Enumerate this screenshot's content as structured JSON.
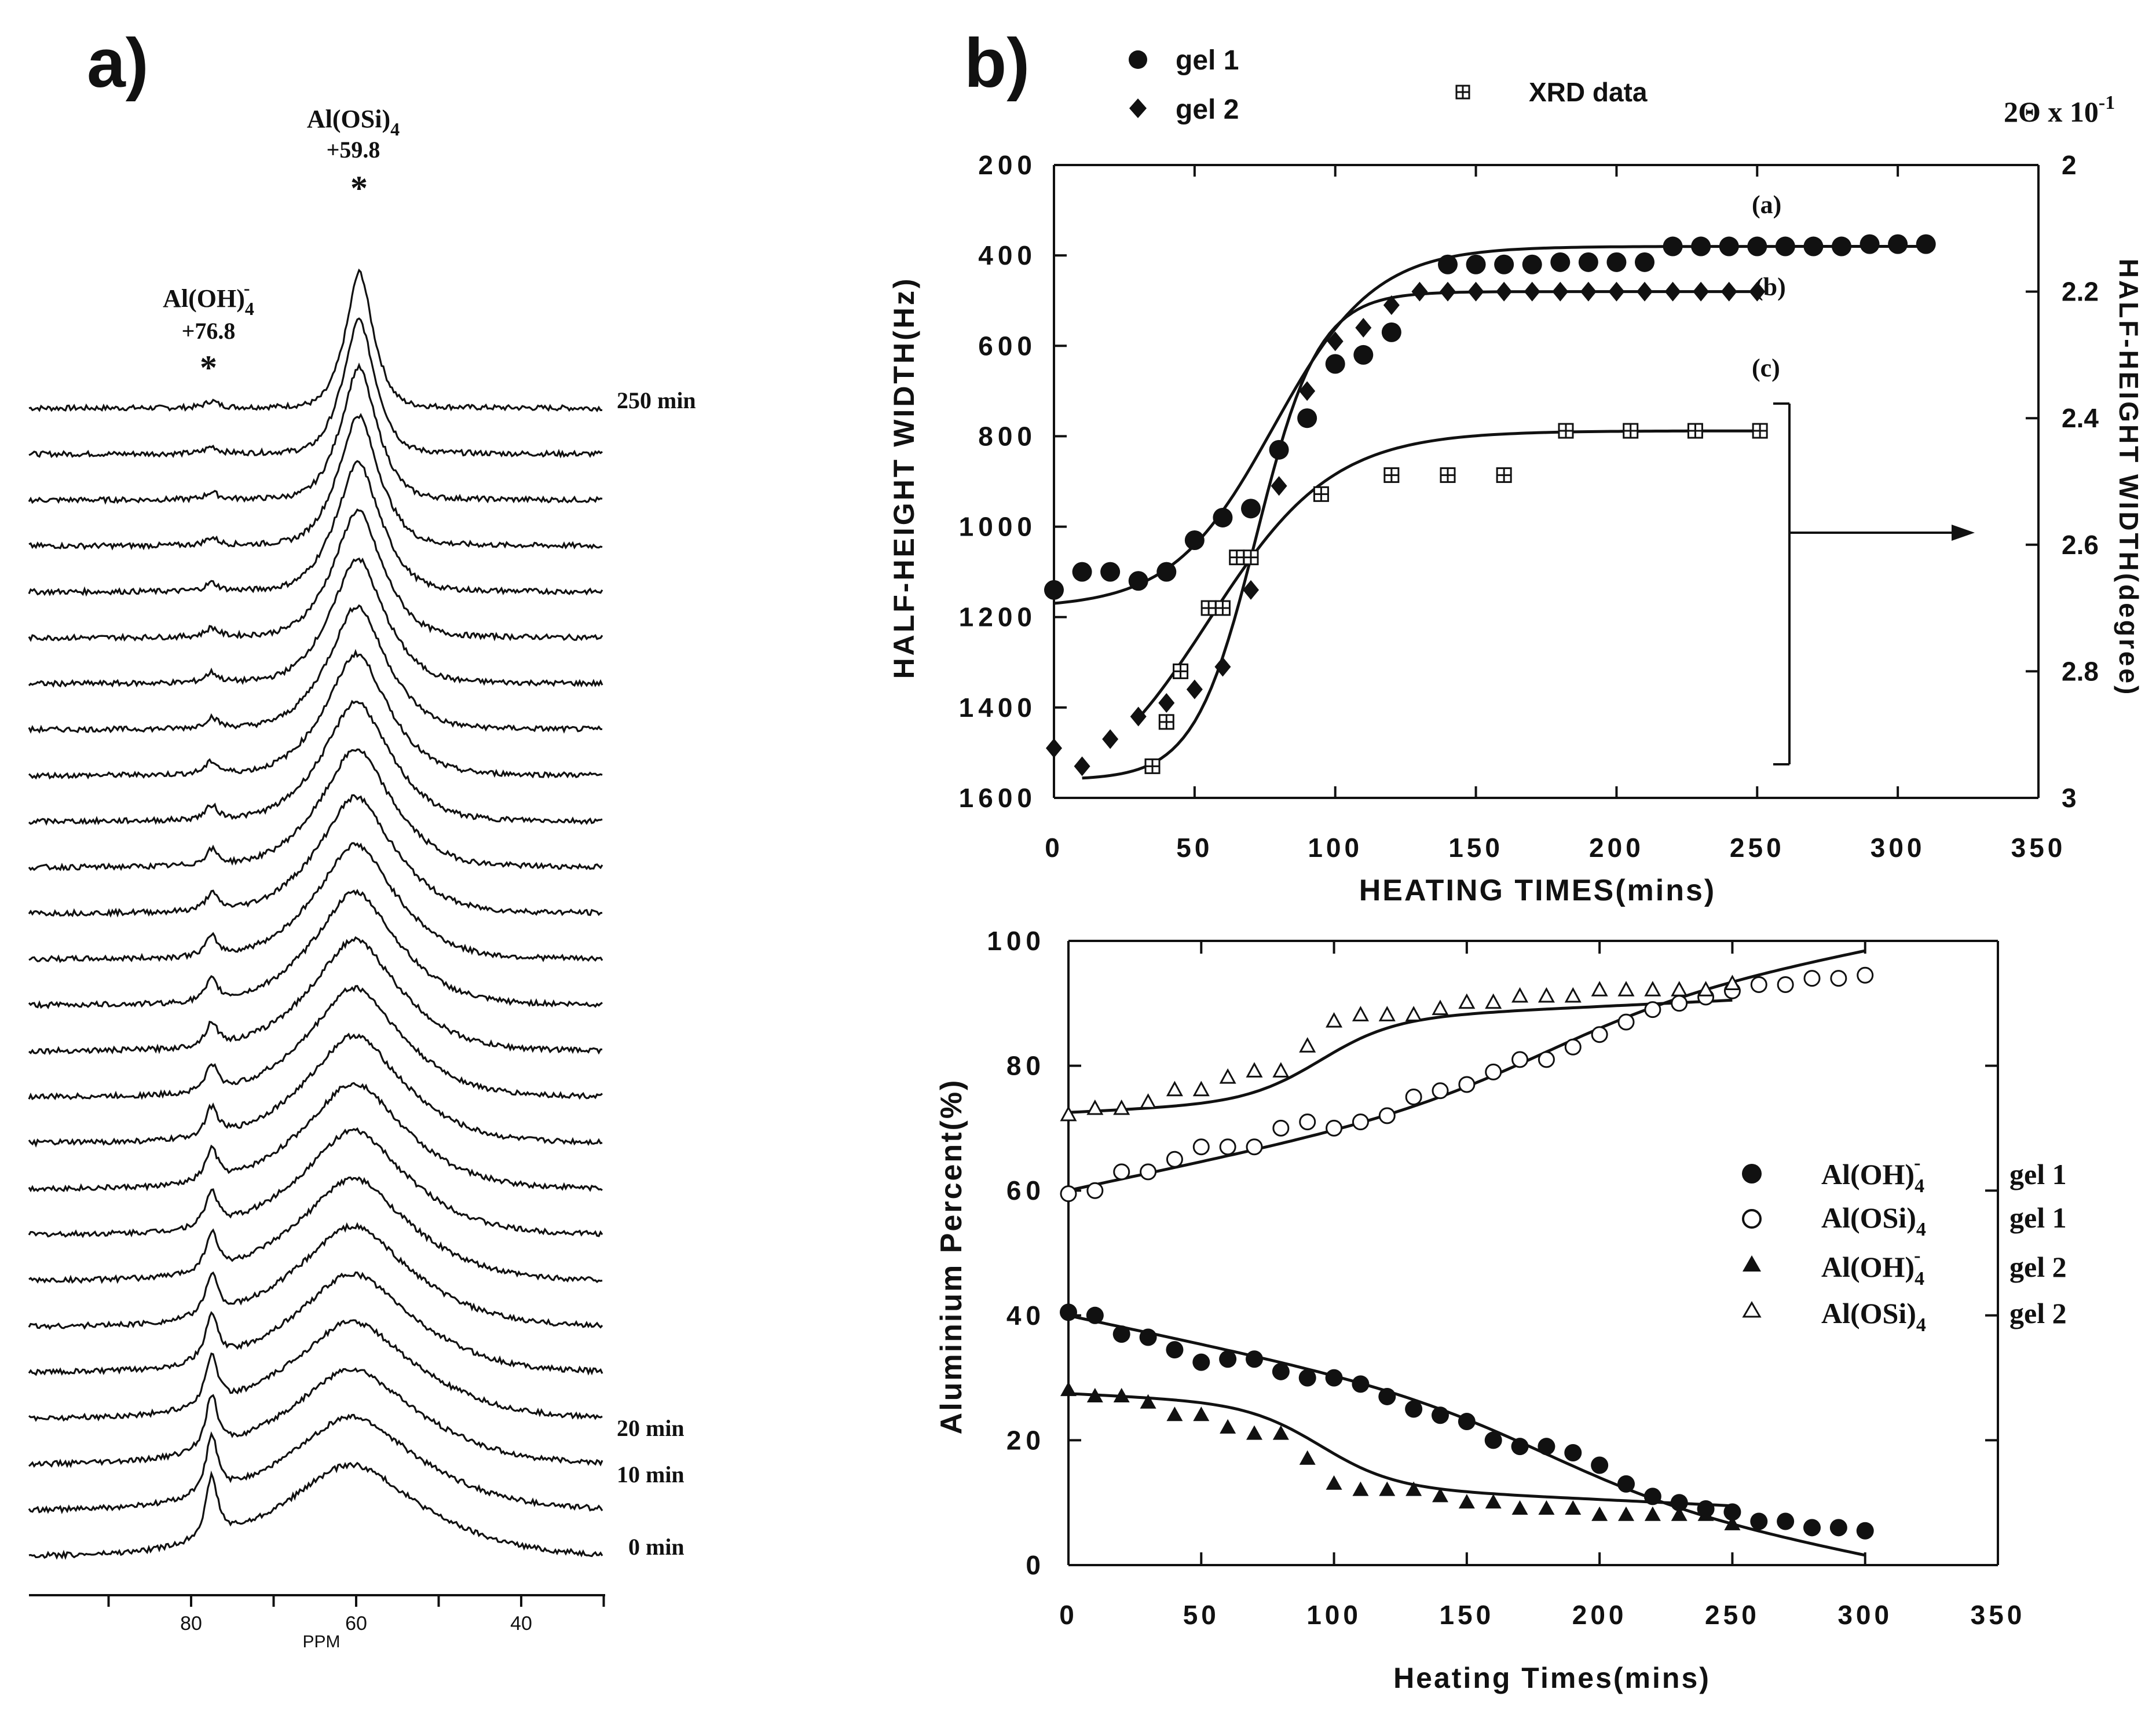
{
  "panel_a": {
    "panel_label": "a)",
    "peak1_name": "Al(OH)",
    "peak1_sub": "4",
    "peak1_sup": "-",
    "peak1_ppm": "+76.8",
    "peak2_name": "Al(OSi)",
    "peak2_sub": "4",
    "peak2_ppm": "+59.8",
    "peak_marker": "*",
    "time_labels": [
      "250 min",
      "20 min",
      "10 min",
      "0 min"
    ],
    "x_ticks": [
      "80",
      "60",
      "40"
    ],
    "x_label": "PPM",
    "chart_data": {
      "type": "line",
      "description_of_series": "stacked 27Al MAS NMR spectra versus heating time",
      "x_unit": "ppm",
      "xlim": [
        98,
        28
      ],
      "peak_positions_ppm": [
        76.8,
        59.8
      ],
      "spectra_count": 26,
      "labelled_times_min": [
        0,
        10,
        20,
        250
      ]
    }
  },
  "panel_b": {
    "panel_label": "b)",
    "top_legend": [
      {
        "marker": "circle",
        "label": "gel 1"
      },
      {
        "marker": "diamond",
        "label": "gel 2"
      },
      {
        "marker": "boxplus",
        "label": "XRD data"
      }
    ],
    "right_axis_title": "2Θ x 10",
    "right_axis_exp": "-1",
    "curve_labels": [
      "(a)",
      "(b)",
      "(c)"
    ],
    "top_chart": {
      "ylabel_left": "HALF-HEIGHT WIDTH(Hz)",
      "ylabel_right": "HALF-HEIGHT WIDTH(degree)",
      "xlabel": "HEATING TIMES(mins)",
      "x_ticks": [
        "0",
        "50",
        "100",
        "150",
        "200",
        "250",
        "300",
        "350"
      ],
      "y_ticks_left": [
        "200",
        "400",
        "600",
        "800",
        "1000",
        "1200",
        "1400",
        "1600"
      ],
      "y_ticks_right": [
        "2",
        "2.2",
        "2.4",
        "2.6",
        "2.8",
        "3"
      ]
    },
    "bottom_chart": {
      "ylabel": "Aluminium Percent(%)",
      "xlabel": "Heating Times(mins)",
      "x_ticks": [
        "0",
        "50",
        "100",
        "150",
        "200",
        "250",
        "300",
        "350"
      ],
      "y_ticks": [
        "0",
        "20",
        "40",
        "60",
        "80",
        "100"
      ],
      "legend": [
        {
          "marker": "filled-circle",
          "species": "Al(OH)",
          "sub": "4",
          "sup": "-",
          "gel": "gel 1"
        },
        {
          "marker": "open-circle",
          "species": "Al(OSi)",
          "sub": "4",
          "sup": "",
          "gel": "gel 1"
        },
        {
          "marker": "filled-triangle",
          "species": "Al(OH)",
          "sub": "4",
          "sup": "-",
          "gel": "gel 2"
        },
        {
          "marker": "open-triangle",
          "species": "Al(OSi)",
          "sub": "4",
          "sup": "",
          "gel": "gel 2"
        }
      ]
    }
  },
  "chart_data": [
    {
      "type": "scatter",
      "xlabel": "HEATING TIMES(mins)",
      "ylabel": "HALF-HEIGHT WIDTH(Hz)",
      "ylabel_right": "HALF-HEIGHT WIDTH(degree)",
      "xlim": [
        0,
        350
      ],
      "ylim_left": [
        200,
        1600
      ],
      "ylim_right": [
        2,
        3
      ],
      "y_axis_inverted": true,
      "series": [
        {
          "name": "gel 1",
          "axis": "left",
          "x": [
            0,
            10,
            20,
            30,
            40,
            50,
            60,
            70,
            80,
            90,
            100,
            110,
            120,
            140,
            150,
            160,
            170,
            180,
            190,
            200,
            210,
            220,
            230,
            240,
            250,
            260,
            270,
            280,
            290,
            300,
            310
          ],
          "y": [
            1140,
            1100,
            1100,
            1120,
            1100,
            1030,
            980,
            960,
            830,
            760,
            640,
            620,
            570,
            420,
            420,
            420,
            420,
            415,
            415,
            415,
            415,
            380,
            380,
            380,
            380,
            380,
            380,
            380,
            375,
            375,
            375
          ]
        },
        {
          "name": "gel 2",
          "axis": "left",
          "x": [
            0,
            10,
            20,
            30,
            40,
            50,
            60,
            70,
            80,
            90,
            100,
            110,
            120,
            130,
            140,
            150,
            160,
            170,
            180,
            190,
            200,
            210,
            220,
            230,
            240,
            250
          ],
          "y": [
            1490,
            1530,
            1470,
            1420,
            1390,
            1360,
            1310,
            1140,
            910,
            700,
            590,
            560,
            510,
            480,
            480,
            480,
            480,
            480,
            480,
            480,
            480,
            480,
            480,
            480,
            480,
            480
          ]
        },
        {
          "name": "XRD data",
          "axis": "right",
          "x": [
            35,
            40,
            45,
            55,
            60,
            65,
            70,
            95,
            120,
            140,
            160,
            182,
            205,
            228,
            251
          ],
          "y": [
            2.95,
            2.88,
            2.8,
            2.7,
            2.7,
            2.62,
            2.62,
            2.52,
            2.49,
            2.49,
            2.49,
            2.42,
            2.42,
            2.42,
            2.42
          ]
        }
      ],
      "annotations": [
        "(a)",
        "(b)",
        "(c)"
      ]
    },
    {
      "type": "scatter",
      "xlabel": "Heating Times(mins)",
      "ylabel": "Aluminium Percent(%)",
      "xlim": [
        0,
        350
      ],
      "ylim": [
        0,
        100
      ],
      "series": [
        {
          "name": "Al(OH)4- gel 1",
          "x": [
            0,
            10,
            20,
            30,
            40,
            50,
            60,
            70,
            80,
            90,
            100,
            110,
            120,
            130,
            140,
            150,
            160,
            170,
            180,
            190,
            200,
            210,
            220,
            230,
            240,
            250,
            260,
            270,
            280,
            290,
            300
          ],
          "y": [
            40.5,
            40,
            37,
            36.5,
            34.5,
            32.5,
            33,
            33,
            31,
            30,
            30,
            29,
            27,
            25,
            24,
            23,
            20,
            19,
            19,
            18,
            16,
            13,
            11,
            10,
            9,
            8.5,
            7,
            7,
            6,
            6,
            5.5
          ]
        },
        {
          "name": "Al(OSi)4 gel 1",
          "x": [
            0,
            10,
            20,
            30,
            40,
            50,
            60,
            70,
            80,
            90,
            100,
            110,
            120,
            130,
            140,
            150,
            160,
            170,
            180,
            190,
            200,
            210,
            220,
            230,
            240,
            250,
            260,
            270,
            280,
            290,
            300
          ],
          "y": [
            59.5,
            60,
            63,
            63,
            65,
            67,
            67,
            67,
            70,
            71,
            70,
            71,
            72,
            75,
            76,
            77,
            79,
            81,
            81,
            83,
            85,
            87,
            89,
            90,
            91,
            92,
            93,
            93,
            94,
            94,
            94.5
          ]
        },
        {
          "name": "Al(OH)4- gel 2",
          "x": [
            0,
            10,
            20,
            30,
            40,
            50,
            60,
            70,
            80,
            90,
            100,
            110,
            120,
            130,
            140,
            150,
            160,
            170,
            180,
            190,
            200,
            210,
            220,
            230,
            240,
            250
          ],
          "y": [
            28,
            27,
            27,
            26,
            24,
            24,
            22,
            21,
            21,
            17,
            13,
            12,
            12,
            12,
            11,
            10,
            10,
            9,
            9,
            9,
            8,
            8,
            8,
            8,
            8,
            6.5
          ]
        },
        {
          "name": "Al(OSi)4 gel 2",
          "x": [
            0,
            10,
            20,
            30,
            40,
            50,
            60,
            70,
            80,
            90,
            100,
            110,
            120,
            130,
            140,
            150,
            160,
            170,
            180,
            190,
            200,
            210,
            220,
            230,
            240,
            250
          ],
          "y": [
            72,
            73,
            73,
            74,
            76,
            76,
            78,
            79,
            79,
            83,
            87,
            88,
            88,
            88,
            89,
            90,
            90,
            91,
            91,
            91,
            92,
            92,
            92,
            92,
            92,
            93
          ]
        }
      ]
    }
  ]
}
